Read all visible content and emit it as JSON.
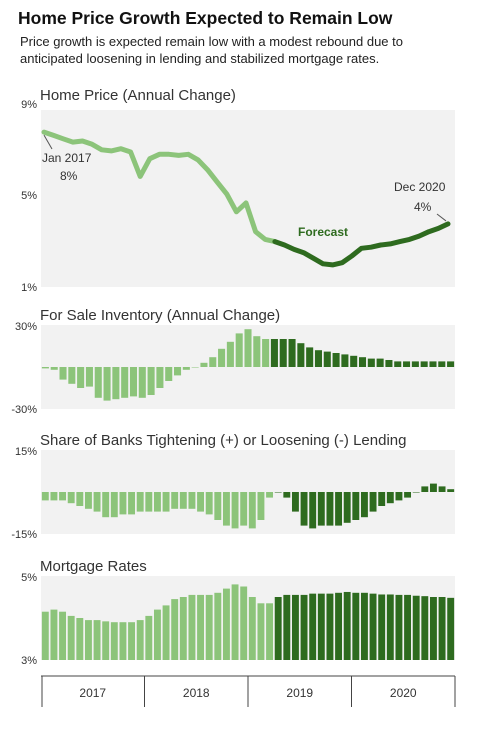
{
  "header": {
    "title": "Home Price Growth Expected to Remain Low",
    "subtitle": "Price growth is expected remain low with a modest rebound due to anticipated loosening in lending and stabilized mortgage rates."
  },
  "colors": {
    "history": "#8cc47a",
    "forecast": "#2e6b1f",
    "panel_bg": "#f2f2f2"
  },
  "chart_data": [
    {
      "type": "line",
      "title": "Home Price (Annual Change)",
      "ylim": [
        1,
        9
      ],
      "yticks": [
        "9%",
        "5%",
        "1%"
      ],
      "grid": false,
      "values": [
        8.0,
        7.85,
        7.7,
        7.55,
        7.6,
        7.45,
        7.2,
        7.15,
        7.25,
        7.1,
        6.0,
        6.8,
        7.0,
        7.0,
        6.95,
        7.0,
        6.75,
        6.3,
        5.75,
        5.2,
        4.4,
        4.8,
        3.5,
        3.15,
        3.05,
        2.9,
        2.7,
        2.55,
        2.3,
        2.05,
        2.0,
        2.1,
        2.4,
        2.75,
        2.8,
        2.9,
        2.95,
        3.05,
        3.15,
        3.3,
        3.5,
        3.65,
        3.85
      ],
      "forecast_start_index": 24,
      "annotations": [
        {
          "label": "Jan 2017",
          "value_label": "8%"
        },
        {
          "label": "Dec 2020",
          "value_label": "4%"
        },
        {
          "label": "Forecast"
        }
      ]
    },
    {
      "type": "bar",
      "title": "For Sale Inventory (Annual Change)",
      "ylim": [
        -30,
        30
      ],
      "yticks": [
        "30%",
        "-30%"
      ],
      "values": [
        -1,
        -2,
        -9,
        -12,
        -15,
        -14,
        -22,
        -24,
        -23,
        -22,
        -21,
        -22,
        -20,
        -15,
        -10,
        -6,
        -2,
        0,
        3,
        7,
        13,
        18,
        24,
        27,
        22,
        20,
        20,
        20,
        20,
        17,
        14,
        12,
        11,
        10,
        9,
        8,
        7,
        6,
        6,
        5,
        4,
        4,
        4,
        4,
        4,
        4,
        4
      ],
      "forecast_start_index": 26
    },
    {
      "type": "bar",
      "title": "Share of Banks Tightening (+) or Loosening (-) Lending",
      "ylim": [
        -15,
        15
      ],
      "yticks": [
        "15%",
        "-15%"
      ],
      "values": [
        -3,
        -3,
        -3,
        -4,
        -5,
        -6,
        -7,
        -9,
        -9,
        -8,
        -8,
        -7,
        -7,
        -7,
        -7,
        -6,
        -6,
        -6,
        -7,
        -8,
        -10,
        -12,
        -13,
        -12,
        -13,
        -10,
        -2,
        0,
        -2,
        -7,
        -12,
        -13,
        -12,
        -12,
        -12,
        -11,
        -10,
        -9,
        -7,
        -5,
        -4,
        -3,
        -2,
        0,
        2,
        3,
        2,
        1
      ],
      "forecast_start_index": 27
    },
    {
      "type": "bar",
      "title": "Mortgage Rates",
      "ylim": [
        3,
        5
      ],
      "yticks": [
        "5%",
        "3%"
      ],
      "values": [
        4.15,
        4.2,
        4.15,
        4.05,
        4.0,
        3.95,
        3.95,
        3.92,
        3.9,
        3.9,
        3.9,
        3.95,
        4.05,
        4.2,
        4.3,
        4.45,
        4.5,
        4.55,
        4.55,
        4.55,
        4.6,
        4.7,
        4.8,
        4.75,
        4.5,
        4.35,
        4.35,
        4.5,
        4.55,
        4.55,
        4.55,
        4.58,
        4.58,
        4.58,
        4.6,
        4.62,
        4.6,
        4.6,
        4.58,
        4.56,
        4.56,
        4.55,
        4.55,
        4.53,
        4.52,
        4.5,
        4.5,
        4.48
      ],
      "forecast_start_index": 27
    }
  ],
  "x_axis": {
    "years": [
      "2017",
      "2018",
      "2019",
      "2020"
    ]
  }
}
